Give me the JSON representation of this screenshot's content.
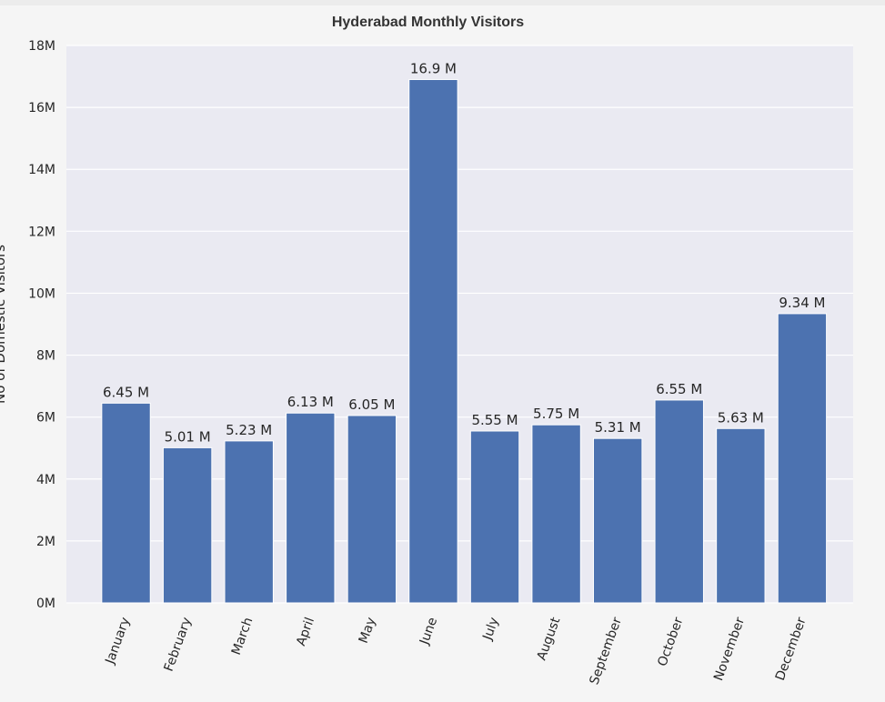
{
  "chart_data": {
    "type": "bar",
    "title": "Hyderabad Monthly Visitors",
    "ylabel": "No of Domestic Visitors",
    "xlabel": "",
    "categories": [
      "January",
      "February",
      "March",
      "April",
      "May",
      "June",
      "July",
      "August",
      "September",
      "October",
      "November",
      "December"
    ],
    "values": [
      6450000,
      5010000,
      5230000,
      6130000,
      6050000,
      16900000,
      5550000,
      5750000,
      5310000,
      6550000,
      5630000,
      9340000
    ],
    "value_labels": [
      "6.45 M",
      "5.01 M",
      "5.23 M",
      "6.13 M",
      "6.05 M",
      "16.9 M",
      "5.55 M",
      "5.75 M",
      "5.31 M",
      "6.55 M",
      "5.63 M",
      "9.34 M"
    ],
    "yticks": [
      0,
      2000000,
      4000000,
      6000000,
      8000000,
      10000000,
      12000000,
      14000000,
      16000000,
      18000000
    ],
    "ytick_labels": [
      "0M",
      "2M",
      "4M",
      "6M",
      "8M",
      "10M",
      "12M",
      "14M",
      "16M",
      "18M"
    ],
    "ylim": [
      0,
      18000000
    ],
    "grid": true,
    "colors": {
      "bar": "#4c72b0",
      "plot_background": "#eaeaf2",
      "grid": "#ffffff"
    }
  }
}
